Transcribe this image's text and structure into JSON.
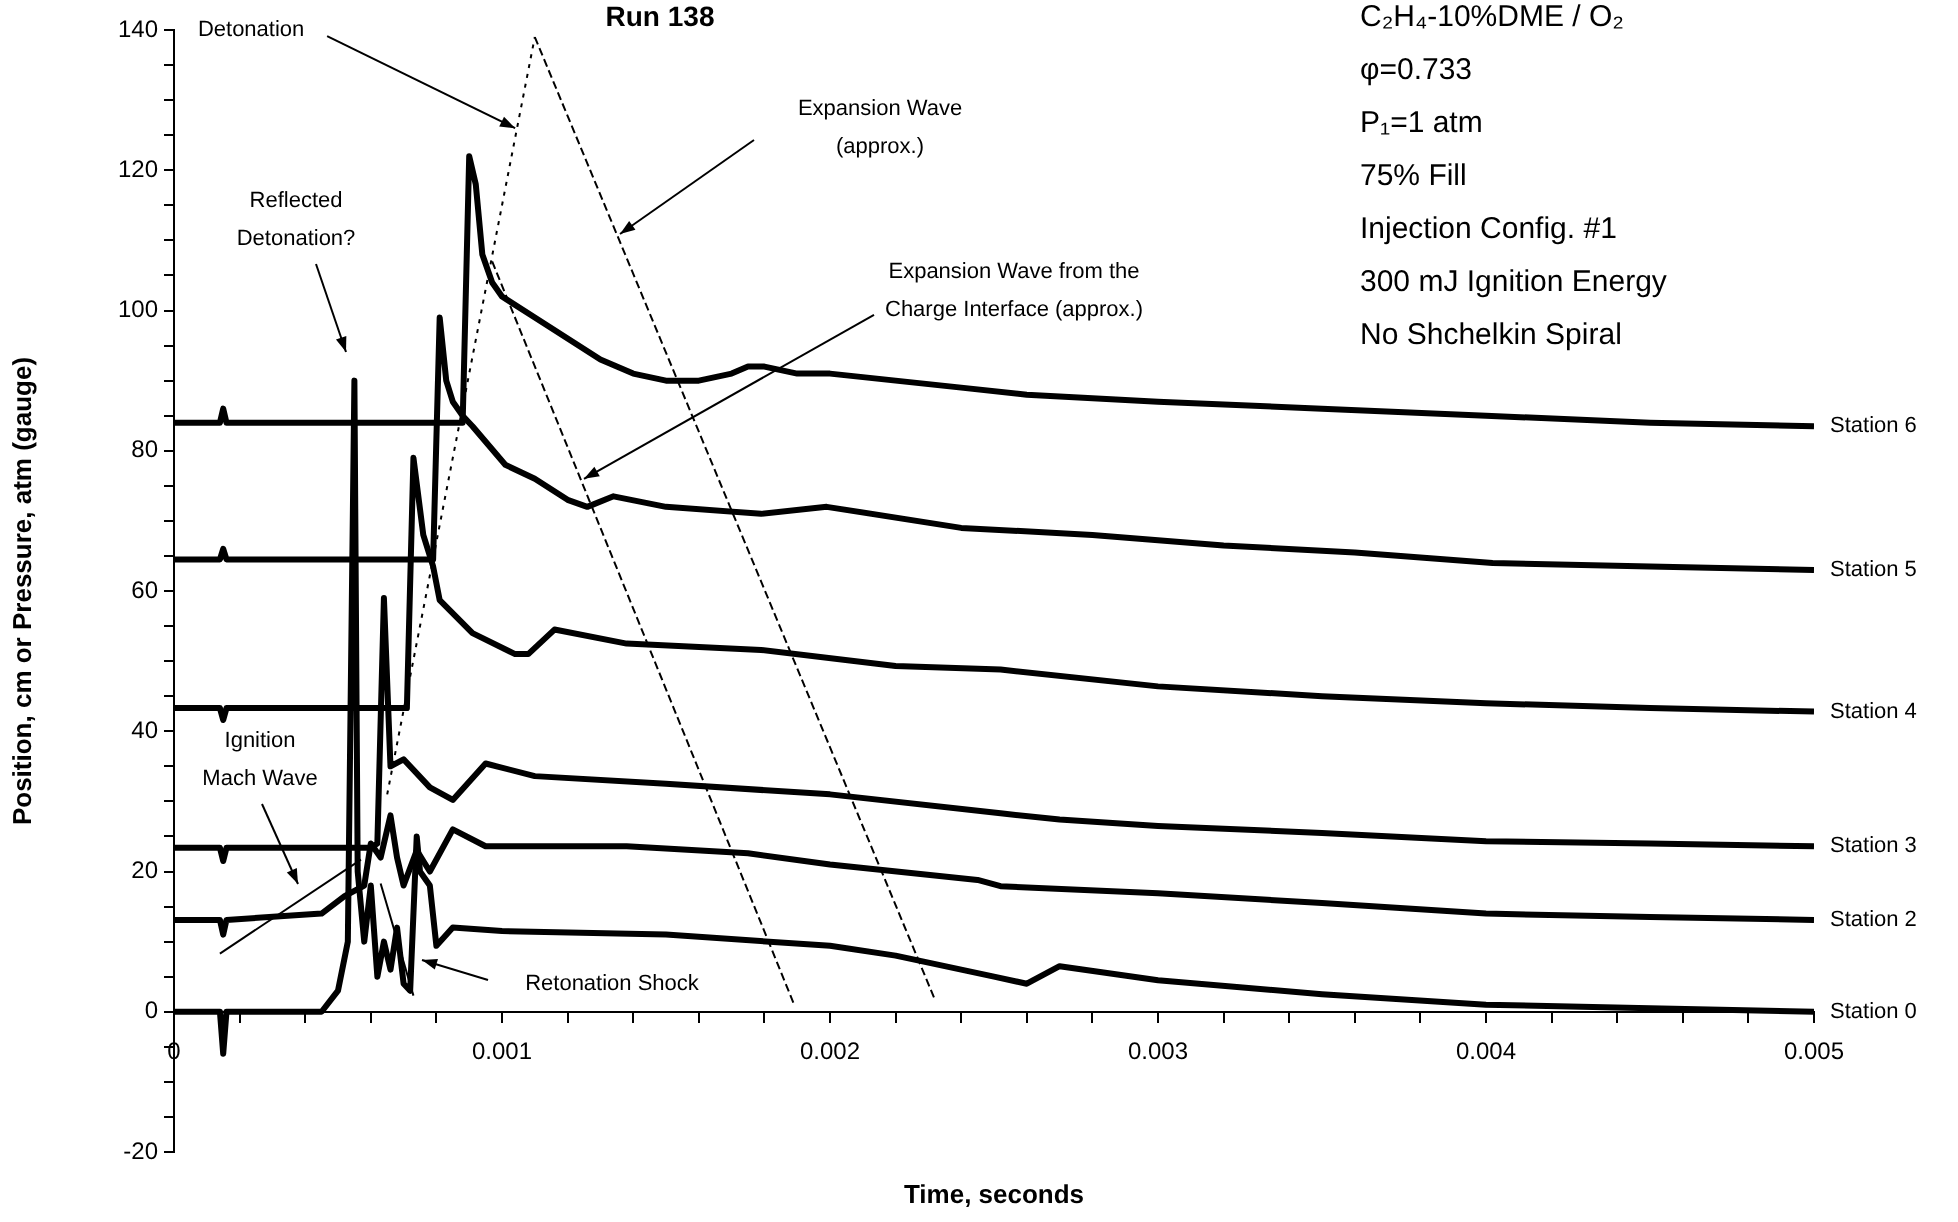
{
  "chart_data": {
    "type": "line",
    "title": "Run 138",
    "xlabel": "Time, seconds",
    "ylabel": "Position, cm or Pressure, atm (gauge)",
    "marker": "none",
    "xlim": [
      0,
      0.005
    ],
    "ylim": [
      -20,
      140
    ],
    "xticks": [
      0,
      {
        "value": 0.0002,
        "label": null
      },
      {
        "value": 0.0004,
        "label": null
      },
      {
        "value": 0.0006,
        "label": null
      },
      {
        "value": 0.0008,
        "label": null
      },
      0.001,
      {
        "value": 0.0012,
        "label": null
      },
      {
        "value": 0.0014,
        "label": null
      },
      {
        "value": 0.0016,
        "label": null
      },
      {
        "value": 0.0018,
        "label": null
      },
      0.002,
      {
        "value": 0.0022,
        "label": null
      },
      {
        "value": 0.0024,
        "label": null
      },
      {
        "value": 0.0026,
        "label": null
      },
      {
        "value": 0.0028,
        "label": null
      },
      0.003,
      {
        "value": 0.0032,
        "label": null
      },
      {
        "value": 0.0034,
        "label": null
      },
      {
        "value": 0.0036,
        "label": null
      },
      {
        "value": 0.0038,
        "label": null
      },
      0.004,
      {
        "value": 0.0042,
        "label": null
      },
      {
        "value": 0.0044,
        "label": null
      },
      {
        "value": 0.0046,
        "label": null
      },
      {
        "value": 0.0048,
        "label": null
      },
      0.005
    ],
    "yticks": [
      -20,
      {
        "value": -15,
        "label": null
      },
      {
        "value": -10,
        "label": null
      },
      {
        "value": -5,
        "label": null
      },
      0,
      {
        "value": 5,
        "label": null
      },
      {
        "value": 10,
        "label": null
      },
      {
        "value": 15,
        "label": null
      },
      20,
      {
        "value": 25,
        "label": null
      },
      {
        "value": 30,
        "label": null
      },
      {
        "value": 35,
        "label": null
      },
      40,
      {
        "value": 45,
        "label": null
      },
      {
        "value": 50,
        "label": null
      },
      {
        "value": 55,
        "label": null
      },
      60,
      {
        "value": 65,
        "label": null
      },
      {
        "value": 70,
        "label": null
      },
      {
        "value": 75,
        "label": null
      },
      80,
      {
        "value": 85,
        "label": null
      },
      {
        "value": 90,
        "label": null
      },
      {
        "value": 95,
        "label": null
      },
      100,
      {
        "value": 105,
        "label": null
      },
      {
        "value": 110,
        "label": null
      },
      {
        "value": 115,
        "label": null
      },
      120,
      {
        "value": 125,
        "label": null
      },
      {
        "value": 130,
        "label": null
      },
      {
        "value": 135,
        "label": null
      },
      140
    ],
    "series": [
      {
        "name": "Station 6",
        "color": "#000000",
        "line_style": "solid",
        "x": [
          0,
          0.00014,
          0.00015,
          0.00016,
          0.00088,
          0.0009,
          0.00092,
          0.00094,
          0.00097,
          0.001,
          0.0011,
          0.0012,
          0.0013,
          0.0014,
          0.0015,
          0.0016,
          0.0017,
          0.00175,
          0.0018,
          0.0019,
          0.002,
          0.0022,
          0.0024,
          0.0026,
          0.003,
          0.0035,
          0.004,
          0.0045,
          0.005
        ],
        "values": [
          84,
          84,
          86,
          84,
          84,
          122,
          118,
          108,
          104,
          102,
          99,
          96,
          93,
          91,
          90,
          90,
          91,
          92,
          92,
          91,
          91,
          90,
          89,
          88,
          87,
          86,
          85,
          84,
          83.5
        ]
      },
      {
        "name": "Station 5",
        "color": "#000000",
        "line_style": "solid",
        "x": [
          0,
          0.00014,
          0.00015,
          0.00016,
          0.00079,
          0.00081,
          0.00083,
          0.00085,
          0.00088,
          0.00091,
          0.00101,
          0.0011,
          0.0012,
          0.00126,
          0.00134,
          0.0015,
          0.00179,
          0.00199,
          0.0024,
          0.0028,
          0.0032,
          0.0036,
          0.00402,
          0.0045,
          0.005
        ],
        "values": [
          64.5,
          64.5,
          66,
          64.5,
          64.5,
          99,
          90,
          87,
          85,
          83.5,
          78,
          76,
          73,
          72,
          73.5,
          72,
          71,
          72,
          69,
          68,
          66.5,
          65.5,
          64,
          63.5,
          63
        ]
      },
      {
        "name": "Station 4",
        "color": "#000000",
        "line_style": "solid",
        "x": [
          0,
          0.00014,
          0.00015,
          0.00016,
          0.00071,
          0.00073,
          0.00076,
          0.00079,
          0.00081,
          0.00091,
          0.00104,
          0.00108,
          0.00116,
          0.00138,
          0.00179,
          0.0022,
          0.00252,
          0.003,
          0.0035,
          0.004,
          0.0045,
          0.005
        ],
        "values": [
          43.3,
          43.3,
          41.6,
          43.3,
          43.3,
          79,
          68,
          63.5,
          58.7,
          54,
          51,
          51,
          54.5,
          52.5,
          51.6,
          49.3,
          48.8,
          46.4,
          45,
          44,
          43.3,
          42.8
        ]
      },
      {
        "name": "Station 3",
        "color": "#000000",
        "line_style": "solid",
        "x": [
          0,
          0.00014,
          0.00015,
          0.00016,
          0.0006,
          0.00062,
          0.00064,
          0.00066,
          0.0007,
          0.00078,
          0.00085,
          0.00095,
          0.0011,
          0.0015,
          0.002,
          0.00252,
          0.0027,
          0.003,
          0.0035,
          0.004,
          0.0045,
          0.005
        ],
        "values": [
          23.4,
          23.4,
          21.5,
          23.4,
          23.4,
          24,
          59,
          35,
          36,
          32,
          30.2,
          35.4,
          33.6,
          32.5,
          31,
          28.3,
          27.4,
          26.5,
          25.5,
          24.3,
          24,
          23.6
        ]
      },
      {
        "name": "Station 2",
        "color": "#000000",
        "line_style": "solid",
        "x": [
          0,
          0.00014,
          0.00015,
          0.00016,
          0.00045,
          0.00052,
          0.00058,
          0.0006,
          0.00063,
          0.00066,
          0.00068,
          0.0007,
          0.00074,
          0.00078,
          0.00085,
          0.00095,
          0.00138,
          0.00175,
          0.002,
          0.00245,
          0.00252,
          0.003,
          0.0035,
          0.004,
          0.0045,
          0.005
        ],
        "values": [
          13.1,
          13.1,
          11,
          13.1,
          14,
          16.5,
          18,
          24,
          22,
          28,
          22,
          18,
          23,
          20,
          26,
          23.6,
          23.6,
          22.6,
          21,
          18.8,
          17.9,
          16.9,
          15.5,
          14,
          13.5,
          13.1
        ]
      },
      {
        "name": "Station 0",
        "color": "#000000",
        "line_style": "solid",
        "x": [
          0,
          0.00014,
          0.00015,
          0.00016,
          0.00045,
          0.0005,
          0.00053,
          0.00055,
          0.00056,
          0.00058,
          0.0006,
          0.00062,
          0.00064,
          0.00066,
          0.00068,
          0.0007,
          0.00072,
          0.00074,
          0.00075,
          0.00078,
          0.0008,
          0.00085,
          0.001,
          0.0015,
          0.002,
          0.0022,
          0.0025,
          0.0026,
          0.0027,
          0.003,
          0.0035,
          0.004,
          0.0045,
          0.005
        ],
        "values": [
          0,
          0,
          -6,
          0,
          0,
          3,
          10,
          90,
          20,
          10,
          18,
          5,
          10,
          6,
          12,
          4,
          3,
          25,
          20,
          18,
          9.4,
          12,
          11.5,
          11,
          9.4,
          8,
          5,
          4,
          6.5,
          4.5,
          2.5,
          1,
          0.5,
          0
        ]
      },
      {
        "color": "#000000",
        "line_style": "dotted",
        "x": [
          0.00065,
          0.0011
        ],
        "values": [
          31,
          139
        ]
      },
      {
        "color": "#000000",
        "line_style": "dashed",
        "x": [
          0.0011,
          0.00232
        ],
        "values": [
          139,
          1.7
        ]
      },
      {
        "color": "#000000",
        "line_style": "dashed",
        "x": [
          0.00097,
          0.00189
        ],
        "values": [
          107,
          1.1
        ]
      },
      {
        "color": "#000000",
        "line_style": "solid",
        "x": [
          0.00014,
          0.00057
        ],
        "values": [
          8.3,
          21.7
        ]
      },
      {
        "color": "#000000",
        "line_style": "solid",
        "x": [
          0.00063,
          0.00073
        ],
        "values": [
          18.3,
          2.3
        ]
      }
    ],
    "annotations": [
      {
        "text": "Detonation",
        "x": 0.00104,
        "y": 126
      },
      "Expansion Wave\n(approx.)",
      "Reflected\nDetonation?",
      {
        "text": "Expansion Wave from the\nCharge Interface (approx.)",
        "x": 0.00125,
        "y": 76
      },
      "Ignition\nMach Wave",
      "Retonation Shock",
      "C₂H₄-10%DME / O₂",
      "φ=0.733",
      "P₁=1 atm",
      "75% Fill",
      "Injection Config. #1",
      "300 mJ Ignition Energy",
      "No Shchelkin Spiral"
    ]
  }
}
